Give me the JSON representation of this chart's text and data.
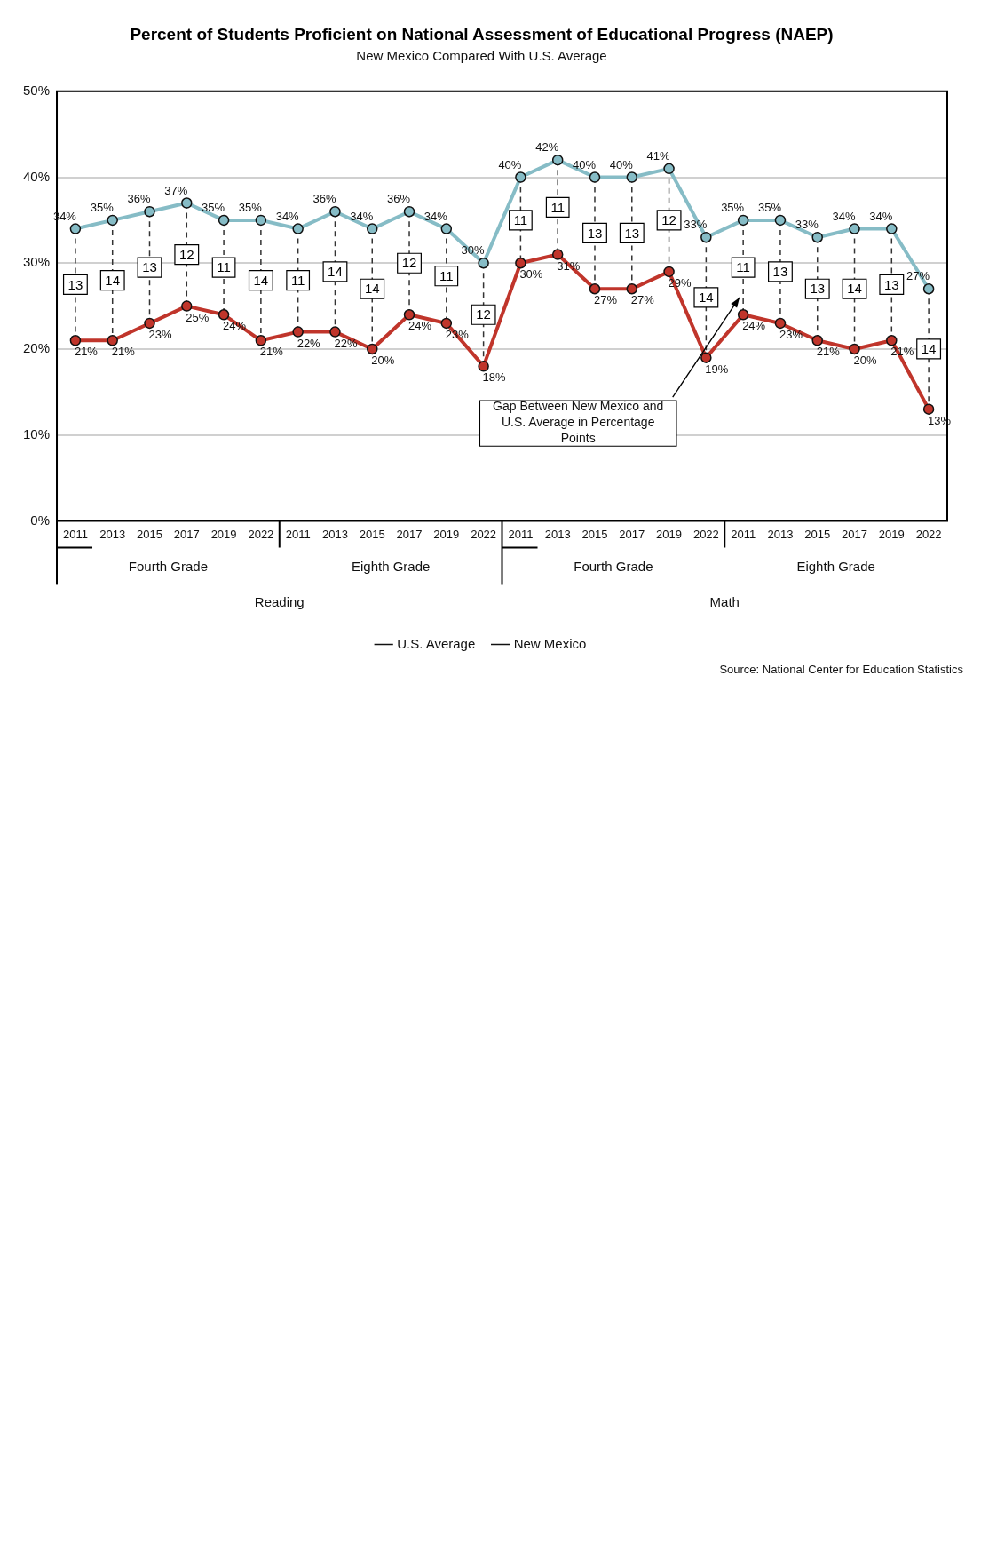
{
  "chart_data": {
    "type": "line",
    "title": "Percent of Students Proficient on National Assessment of Educational Progress (NAEP)",
    "subtitle": "New Mexico Compared With U.S. Average",
    "categories": [
      "2011",
      "2013",
      "2015",
      "2017",
      "2019",
      "2022",
      "2011",
      "2013",
      "2015",
      "2017",
      "2019",
      "2022",
      "2011",
      "2013",
      "2015",
      "2017",
      "2019",
      "2022",
      "2011",
      "2013",
      "2015",
      "2017",
      "2019",
      "2022"
    ],
    "series": [
      {
        "name": "U.S. Average",
        "color": "#86bcc6",
        "values": [
          34,
          35,
          36,
          37,
          35,
          35,
          34,
          36,
          34,
          36,
          34,
          30,
          40,
          42,
          40,
          40,
          41,
          33,
          35,
          35,
          33,
          34,
          34,
          27
        ],
        "value_labels": [
          "34%",
          "35%",
          "36%",
          "37%",
          "35%",
          "35%",
          "34%",
          "36%",
          "34%",
          "36%",
          "34%",
          "30%",
          "40%",
          "42%",
          "40%",
          "40%",
          "41%",
          "33%",
          "35%",
          "35%",
          "33%",
          "34%",
          "34%",
          "27%"
        ]
      },
      {
        "name": "New Mexico",
        "color": "#c0352b",
        "values": [
          21,
          21,
          23,
          25,
          24,
          21,
          22,
          22,
          20,
          24,
          23,
          18,
          30,
          31,
          27,
          27,
          29,
          19,
          24,
          23,
          21,
          20,
          21,
          13
        ],
        "value_labels": [
          "21%",
          "21%",
          "23%",
          "25%",
          "24%",
          "21%",
          "22%",
          "22%",
          "20%",
          "24%",
          "23%",
          "18%",
          "30%",
          "31%",
          "27%",
          "27%",
          "29%",
          "19%",
          "24%",
          "23%",
          "21%",
          "20%",
          "21%",
          "13%"
        ]
      }
    ],
    "ylim": [
      0,
      50
    ],
    "yticks": [
      {
        "value": 0,
        "label": "0%"
      },
      {
        "value": 10,
        "label": "10%"
      },
      {
        "value": 20,
        "label": "20%"
      },
      {
        "value": 30,
        "label": "30%"
      },
      {
        "value": 40,
        "label": "40%"
      },
      {
        "value": 50,
        "label": "50%"
      }
    ],
    "grid": "y",
    "legend": "bottom",
    "marker": "circle",
    "line_style": "solid",
    "annotations": [
      "13",
      "14",
      "13",
      "12",
      "11",
      "14",
      "11",
      "14",
      "14",
      "12",
      "11",
      "12",
      "11",
      "11",
      "13",
      "13",
      "12",
      "14",
      "11",
      "13",
      "13",
      "14",
      "13",
      "14",
      "Fourth Grade",
      "Eighth Grade",
      "Fourth Grade",
      "Eighth Grade",
      "Reading",
      "Math",
      "Source: National Center for Education Statistics",
      "Gap Between New Mexico and U.S. Average in Percentage Points"
    ]
  }
}
